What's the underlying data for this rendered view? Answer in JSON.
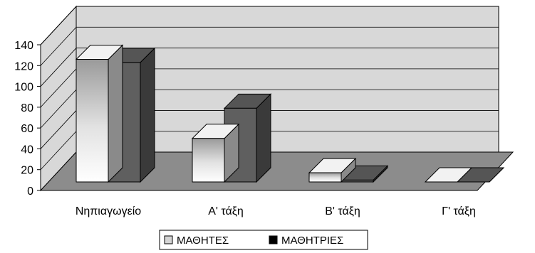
{
  "chart_data": {
    "type": "bar",
    "style": "3d-column",
    "categories": [
      "Νηπιαγωγείο",
      "Α' τάξη",
      "Β' τάξη",
      "Γ' τάξη"
    ],
    "series": [
      {
        "name": "ΜΑΘΗΤΕΣ",
        "values": [
          126,
          50,
          17,
          2
        ],
        "color": "#d4d4d4"
      },
      {
        "name": "ΜΑΘΗΤΡΙΕΣ",
        "values": [
          123,
          79,
          10,
          3
        ],
        "color": "#5f5f5f"
      }
    ],
    "yticks": [
      "0",
      "20",
      "40",
      "60",
      "80",
      "100",
      "120",
      "140"
    ],
    "ylim": [
      0,
      140
    ],
    "grid": true,
    "legend_position": "bottom",
    "legend_swatches": [
      "#d4d4d4",
      "#000000"
    ],
    "wall_color": "#d8d8d8",
    "floor_color": "#8c8c8c"
  }
}
